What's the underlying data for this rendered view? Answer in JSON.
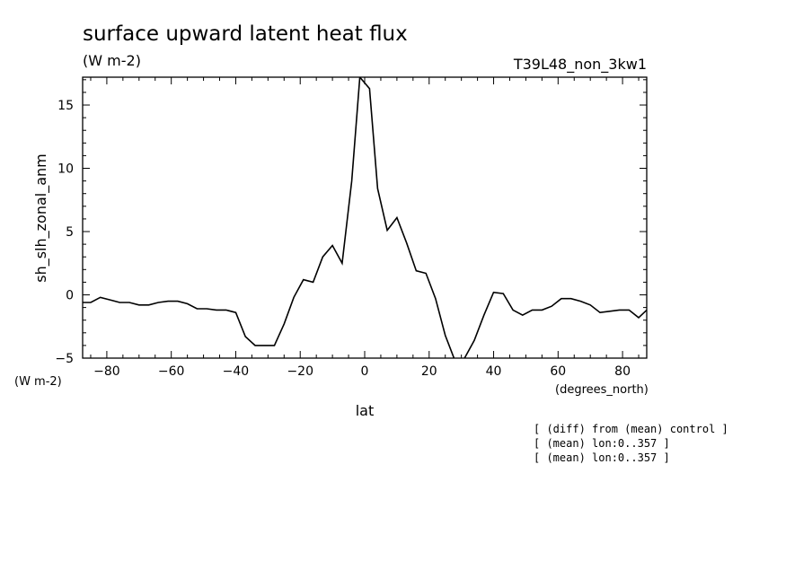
{
  "chart_data": {
    "type": "line",
    "title": "surface upward latent heat flux",
    "subtitle": "(W m-2)",
    "run_label": "T39L48_non_3kw1",
    "xlabel": "lat",
    "x_units": "(degrees_north)",
    "ylabel": "sh_slh_zonal_anm",
    "y_units": "(W m-2)",
    "xlim": [
      -87.5,
      87.5
    ],
    "ylim": [
      -5,
      17.2
    ],
    "x_ticks": [
      -80,
      -60,
      -40,
      -20,
      0,
      20,
      40,
      60,
      80
    ],
    "y_ticks": [
      -5,
      0,
      5,
      10,
      15
    ],
    "grid": false,
    "notes": [
      "[ (diff) from (mean) control ]",
      "[ (mean) lon:0..357 ]",
      "[ (mean) lon:0..357 ]"
    ],
    "series": [
      {
        "color": "#000000",
        "x": [
          -87.5,
          -85,
          -82,
          -79,
          -76,
          -73,
          -70,
          -67,
          -64,
          -61,
          -58,
          -55,
          -52,
          -49,
          -46,
          -43,
          -40,
          -37,
          -34,
          -31,
          -28,
          -25,
          -22,
          -19,
          -16,
          -13,
          -10,
          -7,
          -4,
          -1.5,
          1.5,
          4,
          7,
          10,
          13,
          16,
          19,
          22,
          25,
          28,
          31,
          34,
          37,
          40,
          43,
          46,
          49,
          52,
          55,
          58,
          61,
          64,
          67,
          70,
          73,
          76,
          79,
          82,
          85,
          87.5
        ],
        "y": [
          -0.6,
          -0.6,
          -0.2,
          -0.4,
          -0.6,
          -0.6,
          -0.8,
          -0.8,
          -0.6,
          -0.5,
          -0.5,
          -0.7,
          -1.1,
          -1.1,
          -1.2,
          -1.2,
          -1.4,
          -3.3,
          -4.0,
          -4.0,
          -4.0,
          -2.3,
          -0.2,
          1.2,
          1.0,
          3.0,
          3.9,
          2.5,
          9.0,
          17.2,
          16.3,
          8.4,
          5.1,
          6.1,
          4.1,
          1.9,
          1.7,
          -0.3,
          -3.2,
          -5.2,
          -5.0,
          -3.6,
          -1.6,
          0.2,
          0.1,
          -1.2,
          -1.6,
          -1.2,
          -1.2,
          -0.9,
          -0.3,
          -0.3,
          -0.5,
          -0.8,
          -1.4,
          -1.3,
          -1.2,
          -1.2,
          -1.8,
          -1.2
        ]
      }
    ]
  }
}
